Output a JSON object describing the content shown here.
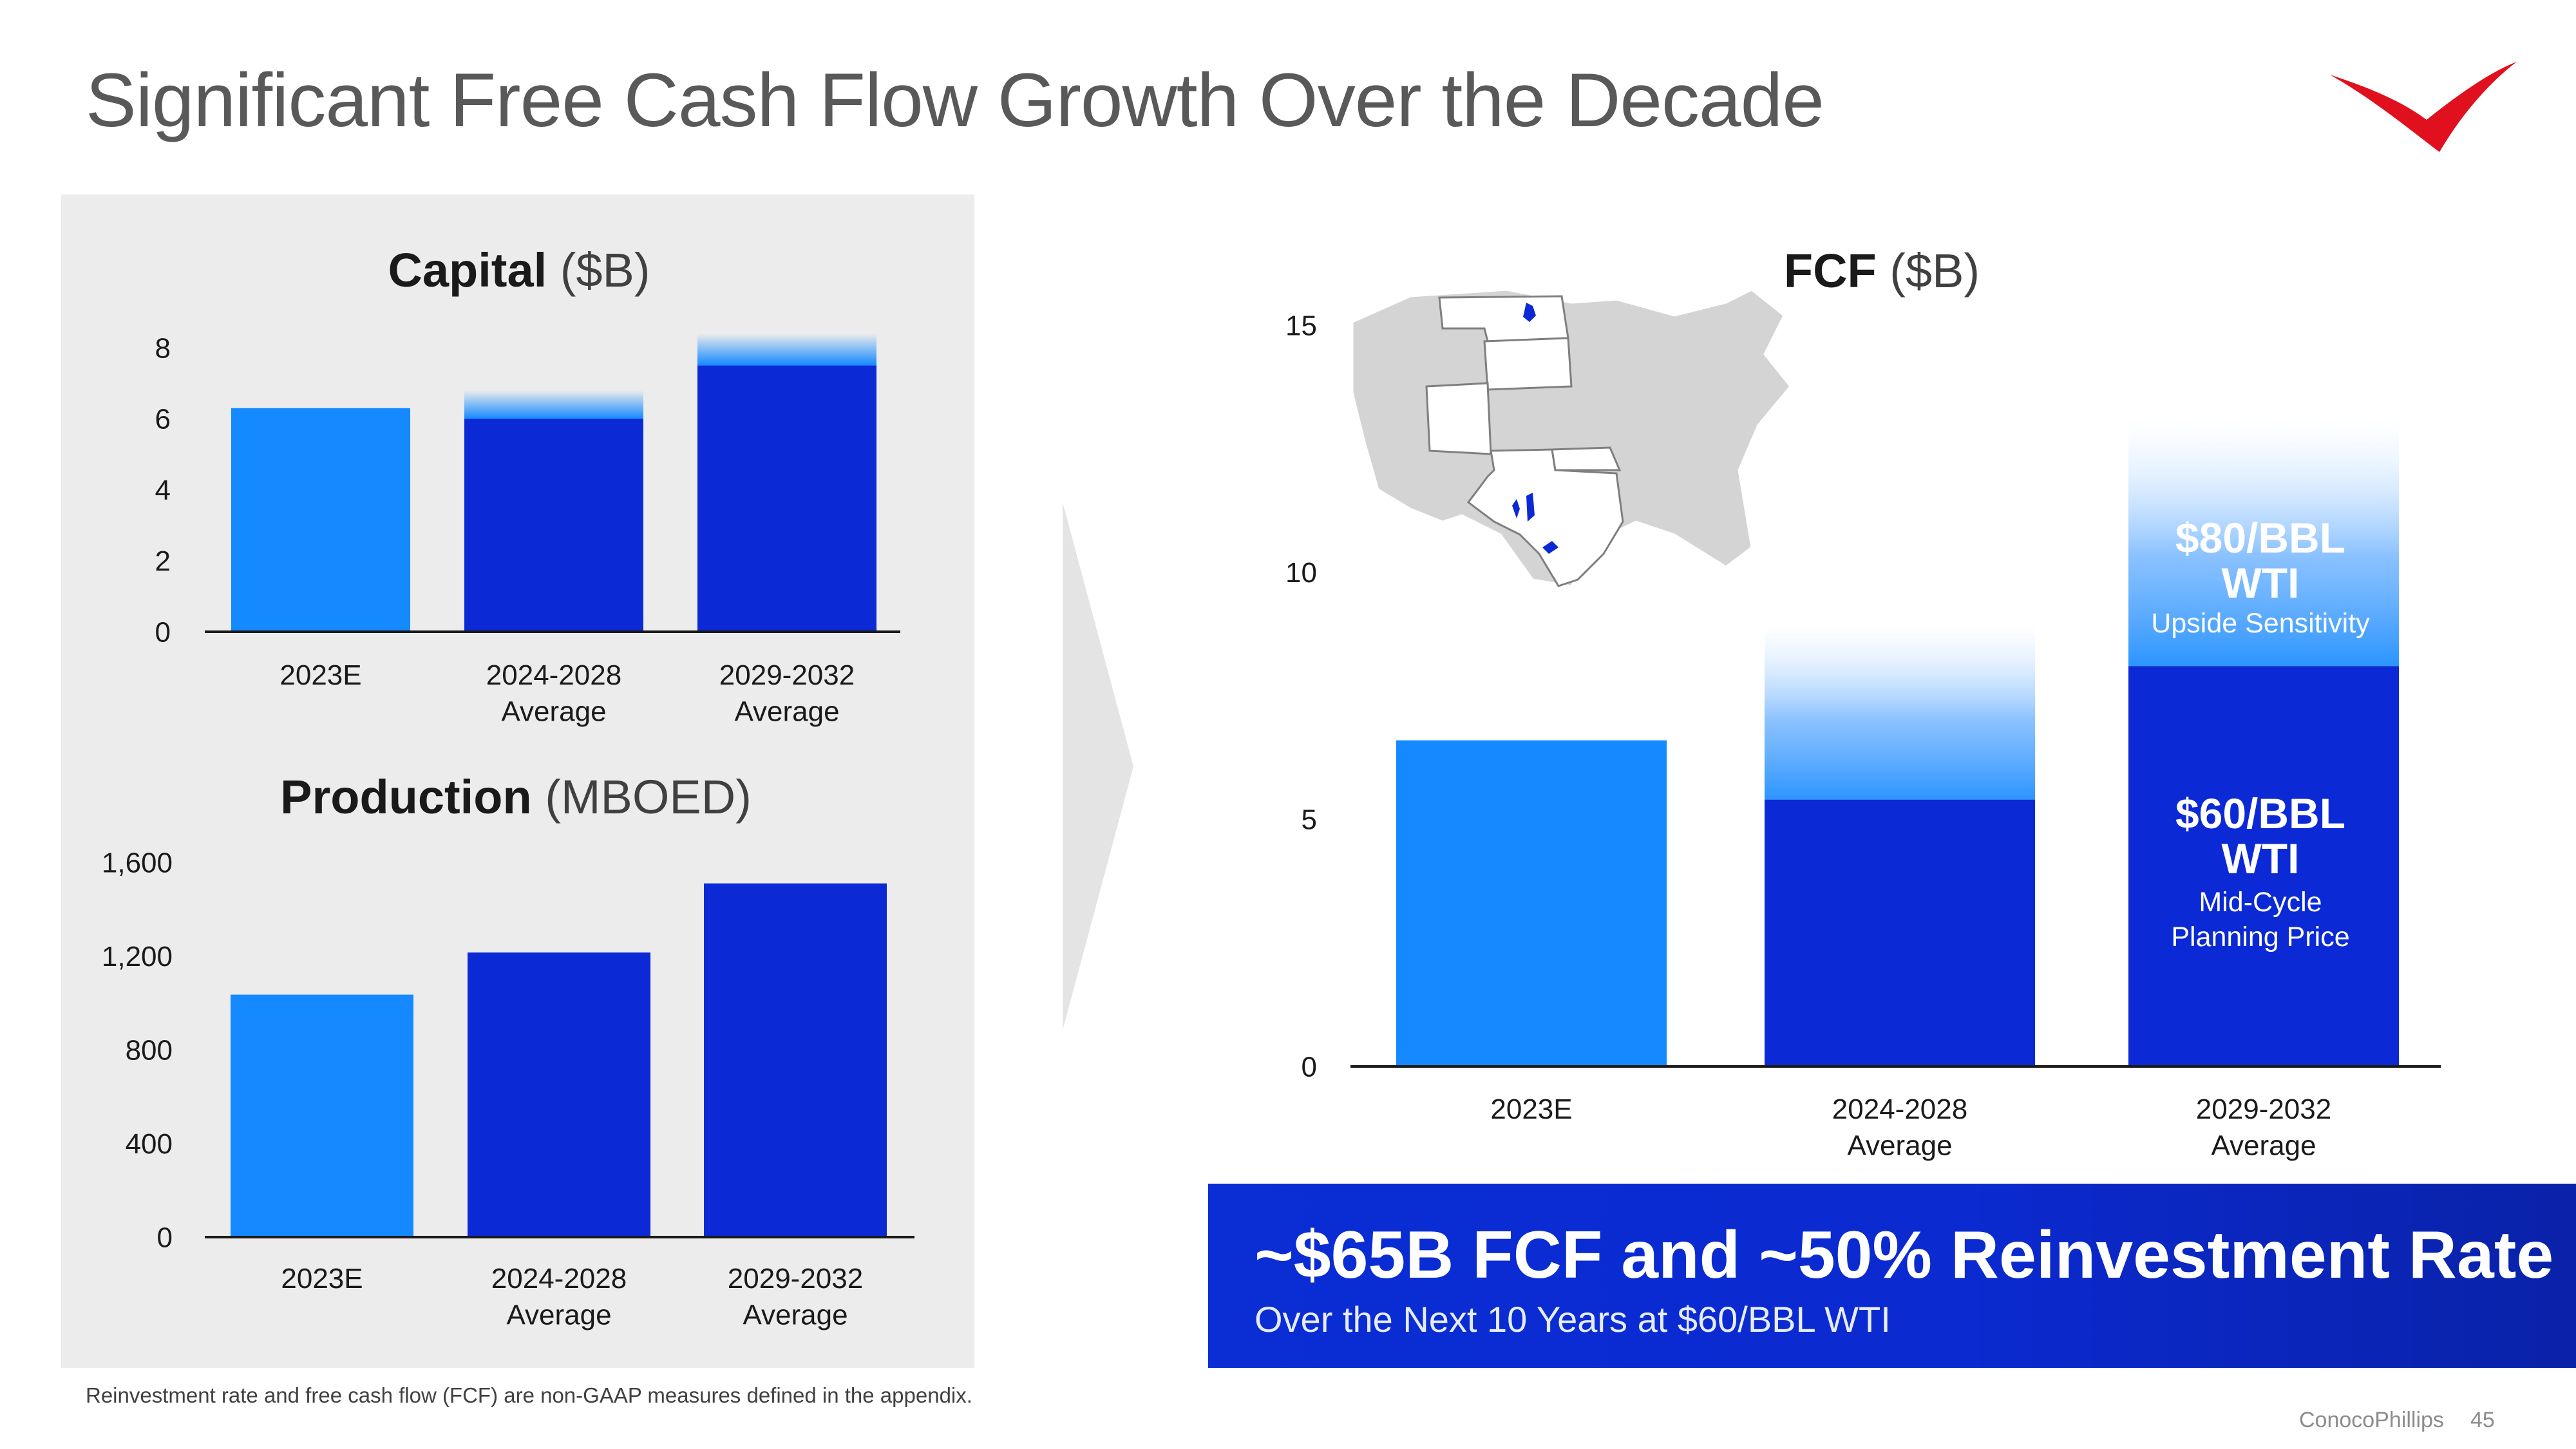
{
  "title": "Significant Free Cash Flow Growth Over the Decade",
  "colors": {
    "light_blue": "#1589ff",
    "dark_blue": "#0b2ad6",
    "panel_bg": "#ececec",
    "brand_red": "#e0101e"
  },
  "capital_chart": {
    "title_bold": "Capital",
    "title_unit": " ($B)",
    "chart_data": {
      "type": "bar",
      "categories": [
        "2023E",
        "2024-2028\nAverage",
        "2029-2032\nAverage"
      ],
      "series": [
        {
          "values": [
            6.3,
            6.0,
            7.5
          ]
        },
        {
          "values": [
            0,
            0.8,
            0.9
          ]
        }
      ],
      "ylim": [
        0,
        8
      ],
      "yticks": [
        "0",
        "2",
        "4",
        "6",
        "8"
      ]
    }
  },
  "production_chart": {
    "title_bold": "Production",
    "title_unit": " (MBOED)",
    "chart_data": {
      "type": "bar",
      "categories": [
        "2023E",
        "2024-2028\nAverage",
        "2029-2032\nAverage"
      ],
      "values": [
        1035,
        1215,
        1510
      ],
      "ylim": [
        0,
        1600
      ],
      "yticks": [
        "0",
        "400",
        "800",
        "1,200",
        "1,600"
      ]
    }
  },
  "fcf_chart": {
    "title_bold": "FCF",
    "title_unit": " ($B)",
    "chart_data": {
      "type": "bar",
      "categories": [
        "2023E",
        "2024-2028\nAverage",
        "2029-2032\nAverage"
      ],
      "series": [
        {
          "values": [
            6.6,
            5.4,
            8.1
          ]
        },
        {
          "values": [
            0,
            3.6,
            5.0
          ]
        }
      ],
      "ylim": [
        0,
        15
      ],
      "yticks": [
        "0",
        "5",
        "10",
        "15"
      ]
    },
    "label_80_line1": "$80/BBL",
    "label_80_line2": "WTI",
    "label_80_sub": "Upside Sensitivity",
    "label_60_line1": "$60/BBL",
    "label_60_line2": "WTI",
    "label_60_sub1": "Mid-Cycle",
    "label_60_sub2": "Planning Price"
  },
  "bottom_box": {
    "headline": "~$65B FCF and ~50% Reinvestment Rate",
    "subline": "Over the Next 10 Years at $60/BBL WTI"
  },
  "footnote": "Reinvestment rate and free cash flow (FCF) are non-GAAP measures defined in the appendix.",
  "footer": {
    "company": "ConocoPhillips",
    "page": "45"
  }
}
